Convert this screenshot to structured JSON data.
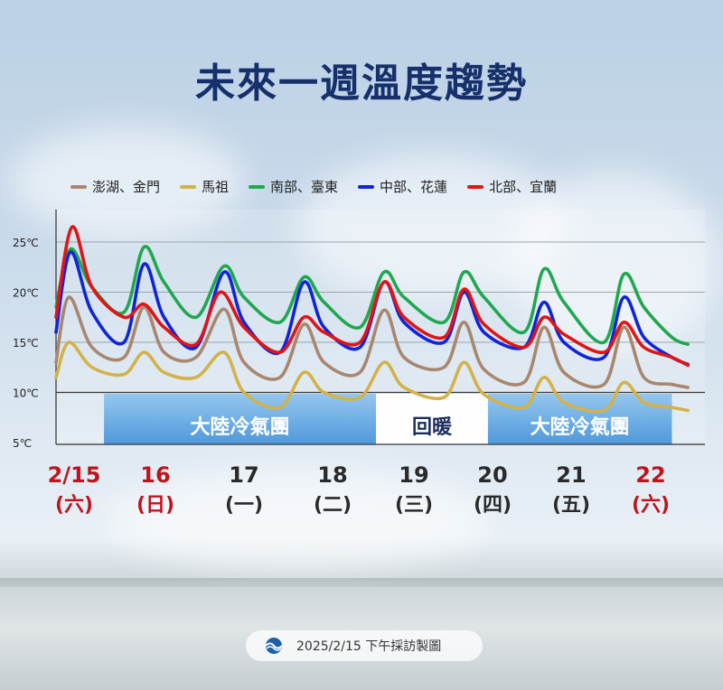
{
  "title": "未來一週溫度趨勢",
  "footer": {
    "text": "2025/2/15  下午採訪製圖"
  },
  "bands": [
    {
      "label": "大陸冷氣團",
      "from": 0.6,
      "to": 4.0,
      "color": "#4a9ce0"
    },
    {
      "label": "回暖",
      "from": 4.0,
      "to": 5.4,
      "color": "#ffffff"
    },
    {
      "label": "大陸冷氣團",
      "from": 5.4,
      "to": 7.7,
      "color": "#4a9ce0"
    }
  ],
  "day_labels": [
    {
      "date": "2/15",
      "weekday": "(六)",
      "color": "#c0141c"
    },
    {
      "date": "16",
      "weekday": "(日)",
      "color": "#c0141c"
    },
    {
      "date": "17",
      "weekday": "(一)",
      "color": "#2a2a2a"
    },
    {
      "date": "18",
      "weekday": "(二)",
      "color": "#2a2a2a"
    },
    {
      "date": "19",
      "weekday": "(三)",
      "color": "#2a2a2a"
    },
    {
      "date": "20",
      "weekday": "(四)",
      "color": "#2a2a2a"
    },
    {
      "date": "21",
      "weekday": "(五)",
      "color": "#2a2a2a"
    },
    {
      "date": "22",
      "weekday": "(六)",
      "color": "#c0141c"
    }
  ],
  "chart_data": {
    "type": "line",
    "title": "未來一週溫度趨勢",
    "xlabel": "",
    "ylabel": "",
    "ylim": [
      5,
      25
    ],
    "xlim": [
      0,
      8
    ],
    "y_ticks": [
      "5℃",
      "10℃",
      "15℃",
      "20℃",
      "25℃"
    ],
    "grid": true,
    "legend_position": "top",
    "series": [
      {
        "name": "澎湖、金門",
        "color": "#a9876e",
        "points": [
          [
            0,
            13
          ],
          [
            0.16,
            19.5
          ],
          [
            0.45,
            14.5
          ],
          [
            0.85,
            13.5
          ],
          [
            1.1,
            18.5
          ],
          [
            1.35,
            14
          ],
          [
            1.75,
            13.5
          ],
          [
            2.1,
            18.3
          ],
          [
            2.35,
            13
          ],
          [
            2.8,
            11.5
          ],
          [
            3.1,
            16.8
          ],
          [
            3.35,
            13
          ],
          [
            3.8,
            12
          ],
          [
            4.1,
            18.2
          ],
          [
            4.35,
            13.5
          ],
          [
            4.85,
            12.5
          ],
          [
            5.1,
            17
          ],
          [
            5.35,
            12.3
          ],
          [
            5.85,
            11
          ],
          [
            6.1,
            16.5
          ],
          [
            6.35,
            12
          ],
          [
            6.85,
            10.8
          ],
          [
            7.1,
            16.5
          ],
          [
            7.35,
            11.5
          ],
          [
            7.7,
            10.8
          ],
          [
            7.9,
            10.5
          ]
        ]
      },
      {
        "name": "馬祖",
        "color": "#d4b24a",
        "points": [
          [
            0,
            11.5
          ],
          [
            0.16,
            15
          ],
          [
            0.45,
            12.5
          ],
          [
            0.85,
            11.8
          ],
          [
            1.1,
            14
          ],
          [
            1.35,
            12
          ],
          [
            1.75,
            11.5
          ],
          [
            2.1,
            14
          ],
          [
            2.35,
            10
          ],
          [
            2.8,
            8.5
          ],
          [
            3.1,
            12
          ],
          [
            3.35,
            10
          ],
          [
            3.8,
            9.5
          ],
          [
            4.1,
            13
          ],
          [
            4.35,
            10.5
          ],
          [
            4.85,
            9.5
          ],
          [
            5.1,
            13
          ],
          [
            5.35,
            9.8
          ],
          [
            5.85,
            8.5
          ],
          [
            6.1,
            11.5
          ],
          [
            6.35,
            9
          ],
          [
            6.85,
            8.2
          ],
          [
            7.1,
            11
          ],
          [
            7.35,
            9
          ],
          [
            7.7,
            8.5
          ],
          [
            7.9,
            8.2
          ]
        ]
      },
      {
        "name": "南部、臺東",
        "color": "#1fa84f",
        "points": [
          [
            0,
            18.5
          ],
          [
            0.18,
            24.3
          ],
          [
            0.45,
            20.5
          ],
          [
            0.85,
            18
          ],
          [
            1.1,
            24.5
          ],
          [
            1.35,
            21
          ],
          [
            1.75,
            17.5
          ],
          [
            2.1,
            22.6
          ],
          [
            2.35,
            19.5
          ],
          [
            2.8,
            17
          ],
          [
            3.1,
            21.5
          ],
          [
            3.35,
            19
          ],
          [
            3.8,
            16.5
          ],
          [
            4.1,
            22
          ],
          [
            4.35,
            19.5
          ],
          [
            4.85,
            17
          ],
          [
            5.1,
            22
          ],
          [
            5.35,
            19.5
          ],
          [
            5.85,
            16
          ],
          [
            6.1,
            22.3
          ],
          [
            6.35,
            19
          ],
          [
            6.85,
            15
          ],
          [
            7.1,
            21.8
          ],
          [
            7.35,
            18.5
          ],
          [
            7.7,
            15.5
          ],
          [
            7.9,
            14.8
          ]
        ]
      },
      {
        "name": "中部、花蓮",
        "color": "#1024d8",
        "points": [
          [
            0,
            16
          ],
          [
            0.18,
            24
          ],
          [
            0.45,
            18
          ],
          [
            0.85,
            15
          ],
          [
            1.1,
            22.8
          ],
          [
            1.35,
            17.5
          ],
          [
            1.75,
            14.5
          ],
          [
            2.1,
            22
          ],
          [
            2.35,
            17
          ],
          [
            2.8,
            14
          ],
          [
            3.1,
            21
          ],
          [
            3.35,
            16.5
          ],
          [
            3.8,
            14.5
          ],
          [
            4.1,
            21
          ],
          [
            4.35,
            17
          ],
          [
            4.85,
            15
          ],
          [
            5.1,
            20
          ],
          [
            5.35,
            16
          ],
          [
            5.85,
            14.5
          ],
          [
            6.1,
            19
          ],
          [
            6.35,
            15
          ],
          [
            6.85,
            13.5
          ],
          [
            7.1,
            19.5
          ],
          [
            7.35,
            15.5
          ],
          [
            7.7,
            13.5
          ],
          [
            7.9,
            12.8
          ]
        ]
      },
      {
        "name": "北部、宜蘭",
        "color": "#e01515",
        "points": [
          [
            0,
            17.5
          ],
          [
            0.2,
            26.5
          ],
          [
            0.45,
            20.5
          ],
          [
            0.85,
            17.5
          ],
          [
            1.1,
            18.8
          ],
          [
            1.35,
            16.5
          ],
          [
            1.75,
            14.8
          ],
          [
            2.05,
            20
          ],
          [
            2.35,
            16.5
          ],
          [
            2.8,
            14
          ],
          [
            3.1,
            17.5
          ],
          [
            3.35,
            16
          ],
          [
            3.8,
            15
          ],
          [
            4.1,
            21
          ],
          [
            4.35,
            17.5
          ],
          [
            4.85,
            15.5
          ],
          [
            5.1,
            20.3
          ],
          [
            5.35,
            16.8
          ],
          [
            5.85,
            14.5
          ],
          [
            6.1,
            17.5
          ],
          [
            6.35,
            15.8
          ],
          [
            6.85,
            14
          ],
          [
            7.1,
            17
          ],
          [
            7.35,
            14.5
          ],
          [
            7.7,
            13.5
          ],
          [
            7.9,
            12.7
          ]
        ]
      }
    ]
  }
}
